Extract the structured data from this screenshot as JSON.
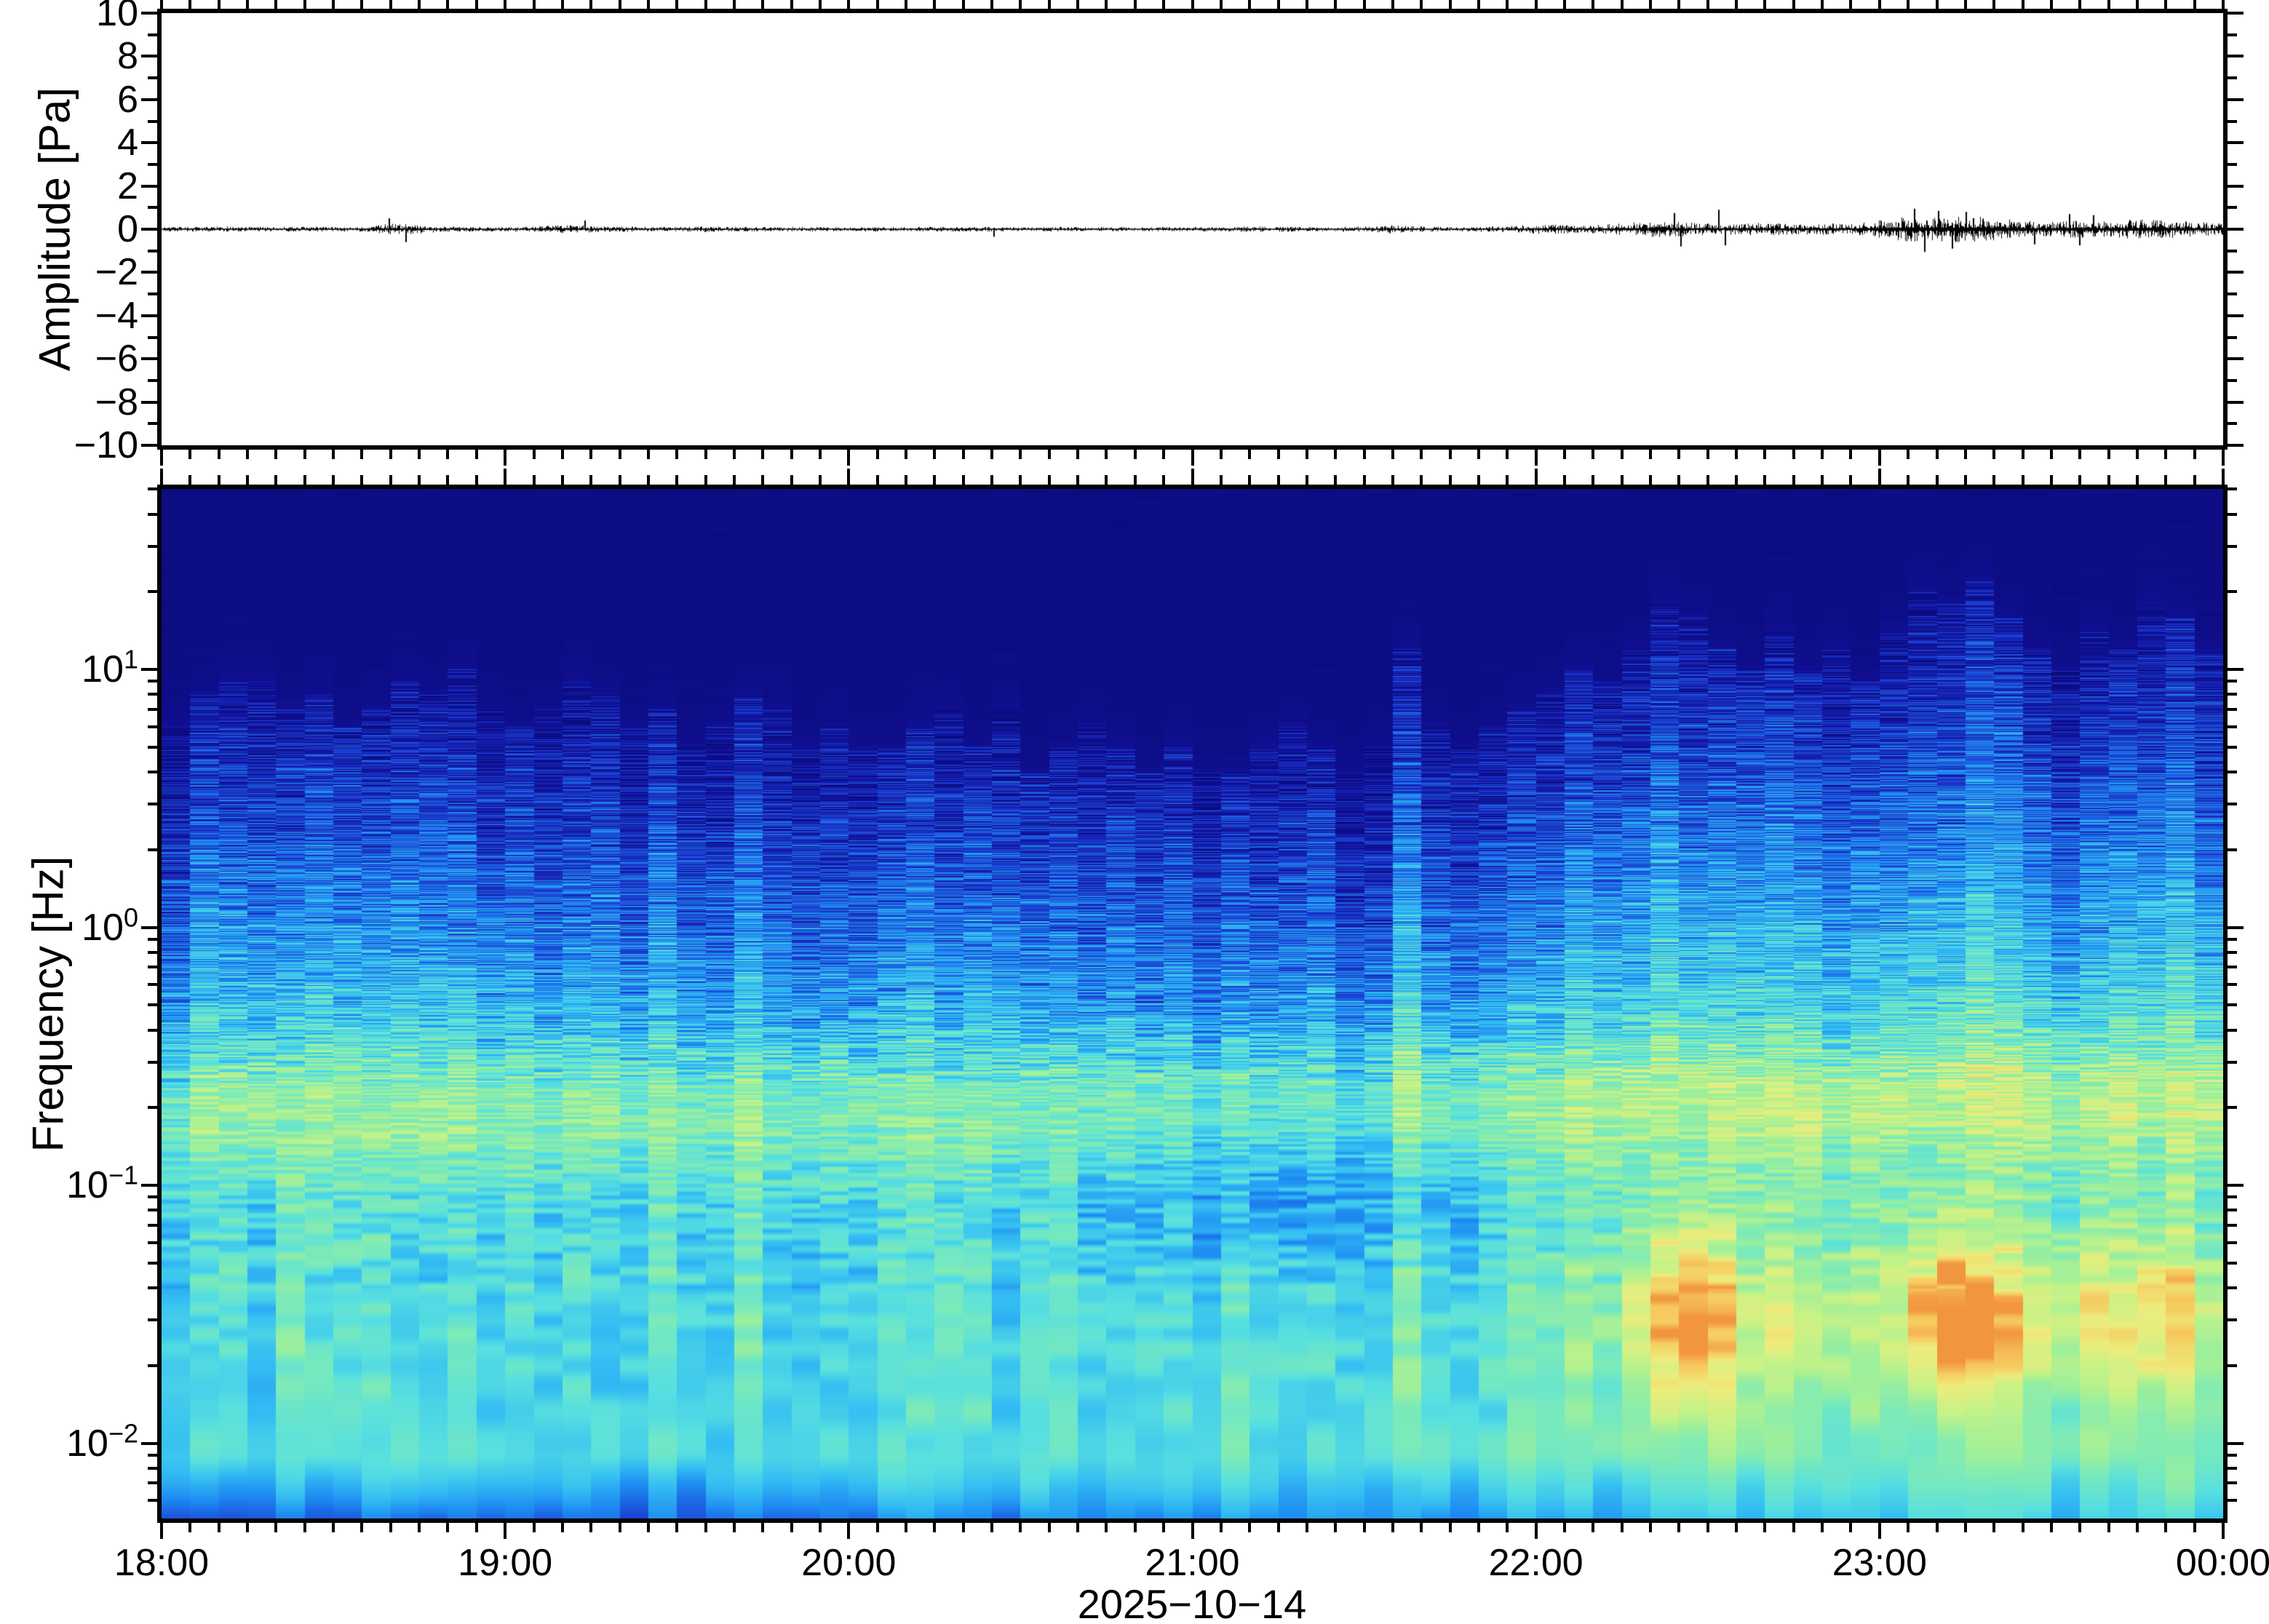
{
  "figure": {
    "background_color": "#ffffff",
    "frame_color": "#000000",
    "date_label": "2025−10−14"
  },
  "waveform_panel": {
    "ylabel": "Amplitude [Pa]",
    "ytick_values": [
      10,
      8,
      6,
      4,
      2,
      0,
      -2,
      -4,
      -6,
      -8,
      -10
    ],
    "ytick_labels": [
      "10",
      "8",
      "6",
      "4",
      "2",
      "0",
      "−2",
      "−4",
      "−6",
      "−8",
      "−10"
    ],
    "minor_tick_step_pa": 1,
    "trace_color": "#000000"
  },
  "spectrogram_panel": {
    "ylabel": "Frequency [Hz]",
    "ytick_exponents": [
      1,
      0,
      -1,
      -2
    ],
    "ytick_sup_labels": [
      "1",
      "0",
      "−1",
      "−2"
    ],
    "ytick_base": "10"
  },
  "time_axis": {
    "labels": [
      "18:00",
      "19:00",
      "20:00",
      "21:00",
      "22:00",
      "23:00",
      "00:00"
    ],
    "hour_offsets": [
      0,
      1,
      2,
      3,
      4,
      5,
      6
    ],
    "minor_interval_minutes": 5,
    "date": "2025−10−14"
  },
  "chart_data": [
    {
      "type": "line",
      "name": "infrasound-waveform",
      "ylabel": "Amplitude [Pa]",
      "ylim": [
        -10,
        10
      ],
      "x_start": "18:00",
      "x_end": "00:00",
      "date": "2025−10−14",
      "line_color": "#000000",
      "noise_envelope_pa_per_5min": [
        0.05,
        0.05,
        0.06,
        0.05,
        0.05,
        0.06,
        0.05,
        0.05,
        0.12,
        0.1,
        0.06,
        0.05,
        0.05,
        0.06,
        0.09,
        0.08,
        0.06,
        0.05,
        0.05,
        0.06,
        0.05,
        0.05,
        0.05,
        0.05,
        0.04,
        0.05,
        0.05,
        0.06,
        0.05,
        0.05,
        0.04,
        0.05,
        0.05,
        0.05,
        0.04,
        0.05,
        0.05,
        0.05,
        0.06,
        0.06,
        0.05,
        0.05,
        0.06,
        0.09,
        0.06,
        0.05,
        0.06,
        0.07,
        0.1,
        0.1,
        0.09,
        0.13,
        0.18,
        0.16,
        0.13,
        0.12,
        0.14,
        0.12,
        0.13,
        0.11,
        0.2,
        0.28,
        0.26,
        0.3,
        0.24,
        0.18,
        0.16,
        0.2,
        0.18,
        0.22,
        0.2,
        0.15
      ],
      "spikes": [
        {
          "hours_after_18": 0.66,
          "amplitude_pa": 0.5
        },
        {
          "hours_after_18": 0.71,
          "amplitude_pa": -0.6
        },
        {
          "hours_after_18": 1.23,
          "amplitude_pa": 0.4
        },
        {
          "hours_after_18": 2.42,
          "amplitude_pa": -0.35
        },
        {
          "hours_after_18": 4.4,
          "amplitude_pa": 0.75
        },
        {
          "hours_after_18": 4.42,
          "amplitude_pa": -0.8
        },
        {
          "hours_after_18": 4.53,
          "amplitude_pa": 0.9
        },
        {
          "hours_after_18": 4.55,
          "amplitude_pa": -0.75
        },
        {
          "hours_after_18": 5.1,
          "amplitude_pa": 0.95
        },
        {
          "hours_after_18": 5.13,
          "amplitude_pa": -1.05
        },
        {
          "hours_after_18": 5.17,
          "amplitude_pa": 0.85
        },
        {
          "hours_after_18": 5.21,
          "amplitude_pa": -0.9
        },
        {
          "hours_after_18": 5.25,
          "amplitude_pa": 0.8
        },
        {
          "hours_after_18": 5.45,
          "amplitude_pa": -0.7
        },
        {
          "hours_after_18": 5.55,
          "amplitude_pa": 0.7
        },
        {
          "hours_after_18": 5.58,
          "amplitude_pa": -0.75
        },
        {
          "hours_after_18": 5.62,
          "amplitude_pa": 0.65
        }
      ]
    },
    {
      "type": "heatmap",
      "name": "infrasound-spectrogram",
      "ylabel": "Frequency [Hz]",
      "freq_range_hz": [
        0.005,
        50
      ],
      "x_start": "18:00",
      "x_end": "00:00",
      "column_minutes": 5,
      "n_columns": 72,
      "colormap_stops": [
        [
          0.0,
          "#0B0B7B"
        ],
        [
          0.12,
          "#12129E"
        ],
        [
          0.25,
          "#1C3FD4"
        ],
        [
          0.37,
          "#1E8CF2"
        ],
        [
          0.47,
          "#35BFF2"
        ],
        [
          0.56,
          "#57DFE0"
        ],
        [
          0.64,
          "#77E9BE"
        ],
        [
          0.72,
          "#9CEF9C"
        ],
        [
          0.8,
          "#C6F287"
        ],
        [
          0.88,
          "#EDEC7C"
        ],
        [
          0.95,
          "#F6C95E"
        ],
        [
          1.0,
          "#F2953F"
        ]
      ],
      "upper_extent_hz_per_5min": [
        6,
        8,
        9,
        9,
        7,
        8,
        6,
        7,
        9,
        8,
        10,
        7,
        6,
        7,
        9,
        8,
        6,
        7,
        5,
        6,
        8,
        7,
        5,
        6,
        5,
        5,
        6,
        7,
        5,
        7,
        4,
        5,
        6,
        5,
        4,
        5,
        4,
        4,
        5,
        6,
        5,
        4,
        5,
        12,
        6,
        5,
        6,
        7,
        8,
        10,
        9,
        12,
        18,
        16,
        12,
        10,
        14,
        10,
        12,
        9,
        14,
        20,
        18,
        22,
        16,
        12,
        10,
        14,
        12,
        18,
        16,
        12
      ],
      "low_band_level_per_5min": [
        0.55,
        0.5,
        0.6,
        0.5,
        0.65,
        0.55,
        0.5,
        0.6,
        0.55,
        0.5,
        0.6,
        0.55,
        0.5,
        0.55,
        0.6,
        0.5,
        0.55,
        0.6,
        0.5,
        0.55,
        0.65,
        0.55,
        0.5,
        0.55,
        0.5,
        0.55,
        0.6,
        0.65,
        0.55,
        0.5,
        0.55,
        0.6,
        0.55,
        0.5,
        0.55,
        0.6,
        0.55,
        0.6,
        0.65,
        0.6,
        0.55,
        0.6,
        0.65,
        0.7,
        0.6,
        0.55,
        0.6,
        0.65,
        0.65,
        0.7,
        0.65,
        0.75,
        0.85,
        0.9,
        0.8,
        0.7,
        0.75,
        0.7,
        0.75,
        0.7,
        0.75,
        0.85,
        0.9,
        0.85,
        0.8,
        0.75,
        0.7,
        0.8,
        0.75,
        0.8,
        0.78,
        0.7
      ],
      "hotspot_level_per_5min": [
        0,
        0,
        0,
        0,
        0.15,
        0,
        0,
        0,
        0,
        0,
        0.1,
        0,
        0,
        0,
        0.1,
        0,
        0,
        0,
        0,
        0,
        0.1,
        0,
        0,
        0,
        0,
        0,
        0,
        0.1,
        0,
        0,
        0,
        0,
        0.1,
        0,
        0,
        0,
        0,
        0,
        0,
        0.1,
        0,
        0,
        0,
        0.15,
        0,
        0,
        0.1,
        0.2,
        0.2,
        0.25,
        0.2,
        0.5,
        0.8,
        0.95,
        0.7,
        0.4,
        0.5,
        0.35,
        0.45,
        0.4,
        0.5,
        0.8,
        1.0,
        0.9,
        0.7,
        0.5,
        0.5,
        0.7,
        0.6,
        0.75,
        0.65,
        0.45
      ],
      "hotspot_center_hz": 0.03,
      "microbarom_band": {
        "center_hz": 0.22,
        "sigma_decades": 0.22,
        "strength_start": 0.5,
        "strength_end": 0.68
      }
    }
  ]
}
